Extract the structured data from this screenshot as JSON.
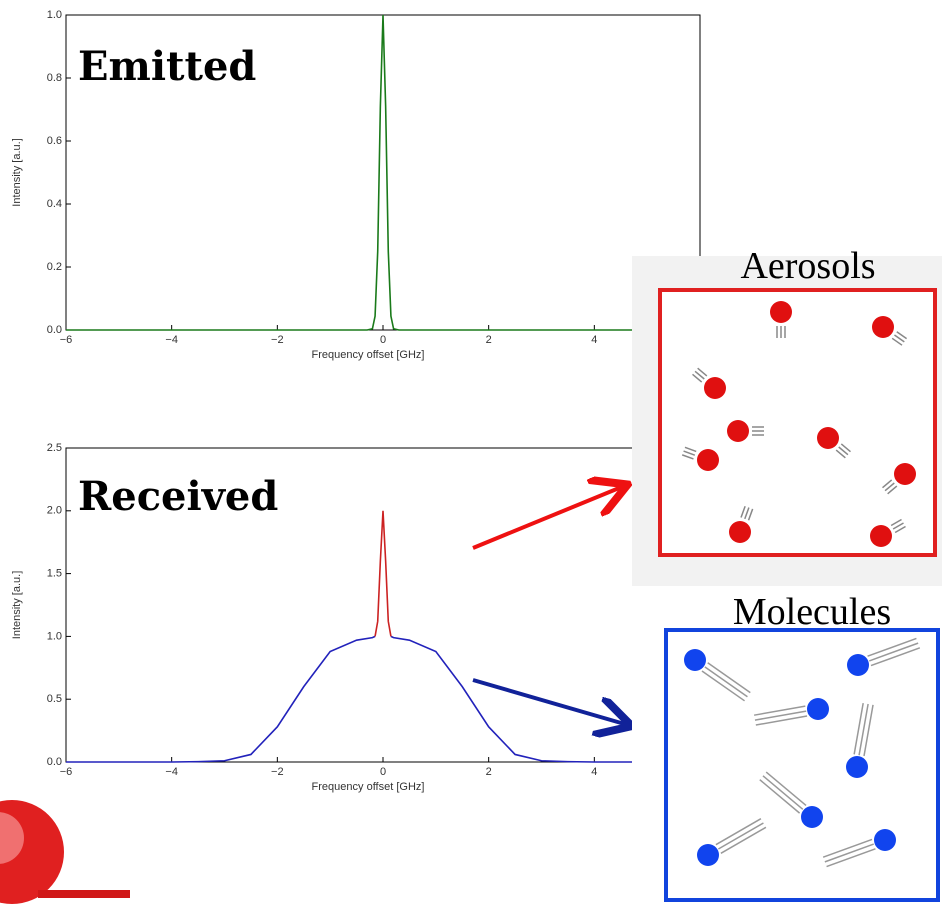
{
  "chart_data": [
    {
      "type": "line",
      "annotation": "Emitted",
      "xlabel": "Frequency offset [GHz]",
      "ylabel": "Intensity [a.u.]",
      "x": [
        -6,
        -0.3,
        -0.2,
        -0.15,
        -0.1,
        -0.05,
        0,
        0.05,
        0.1,
        0.15,
        0.2,
        0.3,
        6
      ],
      "values": [
        0,
        0,
        0.004,
        0.044,
        0.25,
        0.71,
        1.0,
        0.71,
        0.25,
        0.044,
        0.004,
        0,
        0
      ],
      "color": "#1a7a1a",
      "xlim": [
        -6,
        6
      ],
      "xticks": [
        {
          "value": -6,
          "label": "−6"
        },
        {
          "value": -4,
          "label": "−4"
        },
        {
          "value": -2,
          "label": "−2"
        },
        0,
        2,
        4
      ],
      "ylim": [
        0,
        1
      ],
      "yticks": [
        {
          "value": 0,
          "label": "0.0"
        },
        {
          "value": 0.2,
          "label": "0.2"
        },
        {
          "value": 0.4,
          "label": "0.4"
        },
        {
          "value": 0.6,
          "label": "0.6"
        },
        {
          "value": 0.8,
          "label": "0.8"
        },
        {
          "value": 1,
          "label": "1.0"
        }
      ]
    },
    {
      "type": "line",
      "annotation": "Received",
      "xlabel": "Frequency offset [GHz]",
      "ylabel": "Intensity [a.u.]",
      "x": [
        -6,
        -4,
        -3.5,
        -3,
        -2.5,
        -2,
        -1.5,
        -1,
        -0.5,
        -0.2,
        -0.15,
        -0.1,
        -0.05,
        0,
        0.05,
        0.1,
        0.15,
        0.2,
        0.5,
        1,
        1.5,
        2,
        2.5,
        3,
        3.5,
        4,
        6
      ],
      "series": [
        {
          "color": "#2222bb",
          "values": [
            0,
            0,
            0.003,
            0.01,
            0.06,
            0.28,
            0.6,
            0.88,
            0.97,
            0.99,
            1.0,
            null,
            null,
            null,
            null,
            null,
            1.0,
            0.99,
            0.97,
            0.88,
            0.6,
            0.28,
            0.06,
            0.01,
            0.003,
            0,
            0
          ]
        },
        {
          "color": "#cc2222",
          "values": [
            null,
            null,
            null,
            null,
            null,
            null,
            null,
            null,
            null,
            null,
            1.0,
            1.12,
            1.6,
            2.0,
            1.6,
            1.12,
            1.0,
            null,
            null,
            null,
            null,
            null,
            null,
            null,
            null,
            null,
            null
          ]
        }
      ],
      "xlim": [
        -6,
        6
      ],
      "xticks": [
        {
          "value": -6,
          "label": "−6"
        },
        {
          "value": -4,
          "label": "−4"
        },
        {
          "value": -2,
          "label": "−2"
        },
        0,
        2,
        4
      ],
      "ylim": [
        0,
        2.5
      ],
      "yticks": [
        {
          "value": 0,
          "label": "0.0"
        },
        {
          "value": 0.5,
          "label": "0.5"
        },
        {
          "value": 1,
          "label": "1.0"
        },
        {
          "value": 1.5,
          "label": "1.5"
        },
        {
          "value": 2,
          "label": "2.0"
        },
        {
          "value": 2.5,
          "label": "2.5"
        }
      ]
    }
  ],
  "panels": [
    {
      "label": "Aerosols"
    },
    {
      "label": "Molecules"
    }
  ]
}
